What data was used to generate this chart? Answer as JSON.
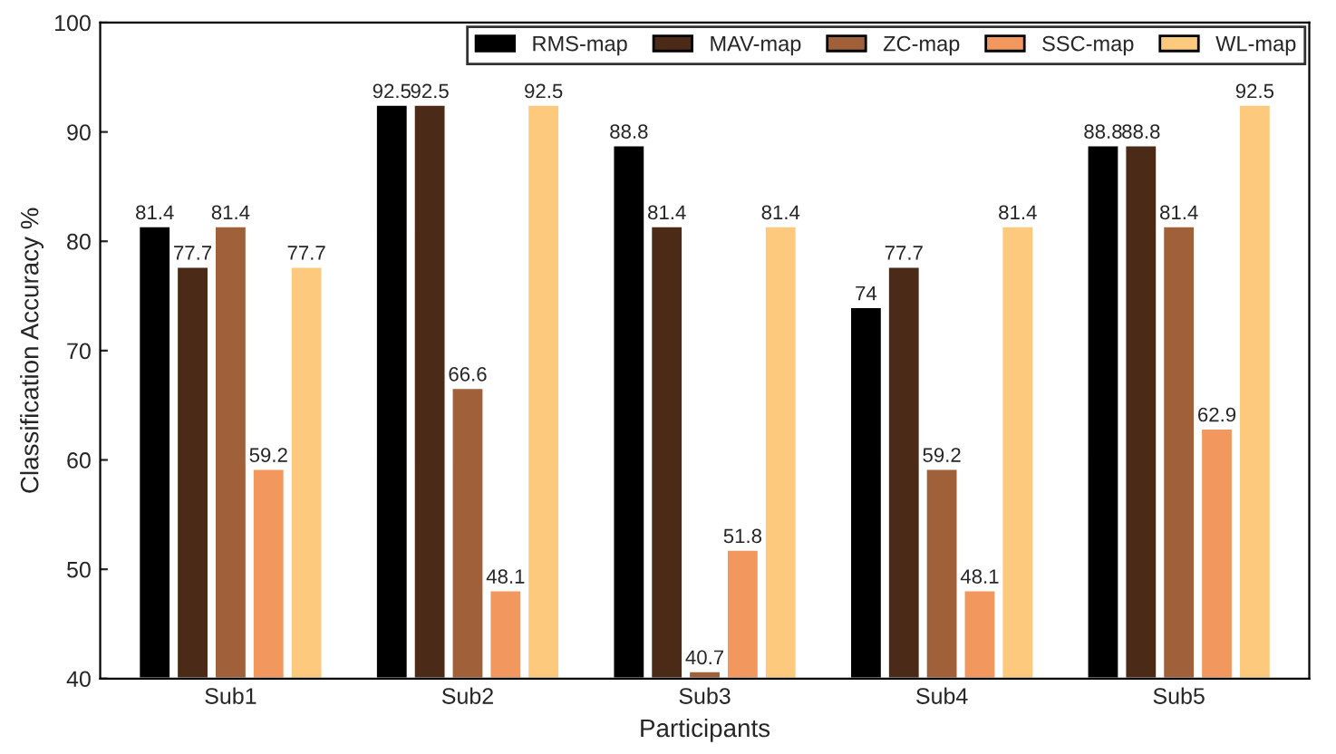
{
  "chart_data": {
    "type": "bar",
    "xlabel": "Participants",
    "ylabel": "Classification Accuracy %",
    "categories": [
      "Sub1",
      "Sub2",
      "Sub3",
      "Sub4",
      "Sub5"
    ],
    "series": [
      {
        "name": "RMS-map",
        "color": "#000000",
        "values": [
          81.4,
          92.5,
          88.8,
          74,
          88.8
        ]
      },
      {
        "name": "MAV-map",
        "color": "#4b2a17",
        "values": [
          77.7,
          92.5,
          81.4,
          77.7,
          88.8
        ]
      },
      {
        "name": "ZC-map",
        "color": "#a0603a",
        "values": [
          81.4,
          66.6,
          40.7,
          59.2,
          81.4
        ]
      },
      {
        "name": "SSC-map",
        "color": "#f2975e",
        "values": [
          59.2,
          48.1,
          51.8,
          48.1,
          62.9
        ]
      },
      {
        "name": "WL-map",
        "color": "#fdc97d",
        "values": [
          77.7,
          92.5,
          81.4,
          81.4,
          92.5
        ]
      }
    ],
    "ylim": [
      40,
      100
    ],
    "yticks": [
      40,
      50,
      60,
      70,
      80,
      90,
      100
    ],
    "data_labels": true,
    "grid": false,
    "legend": "top right"
  }
}
